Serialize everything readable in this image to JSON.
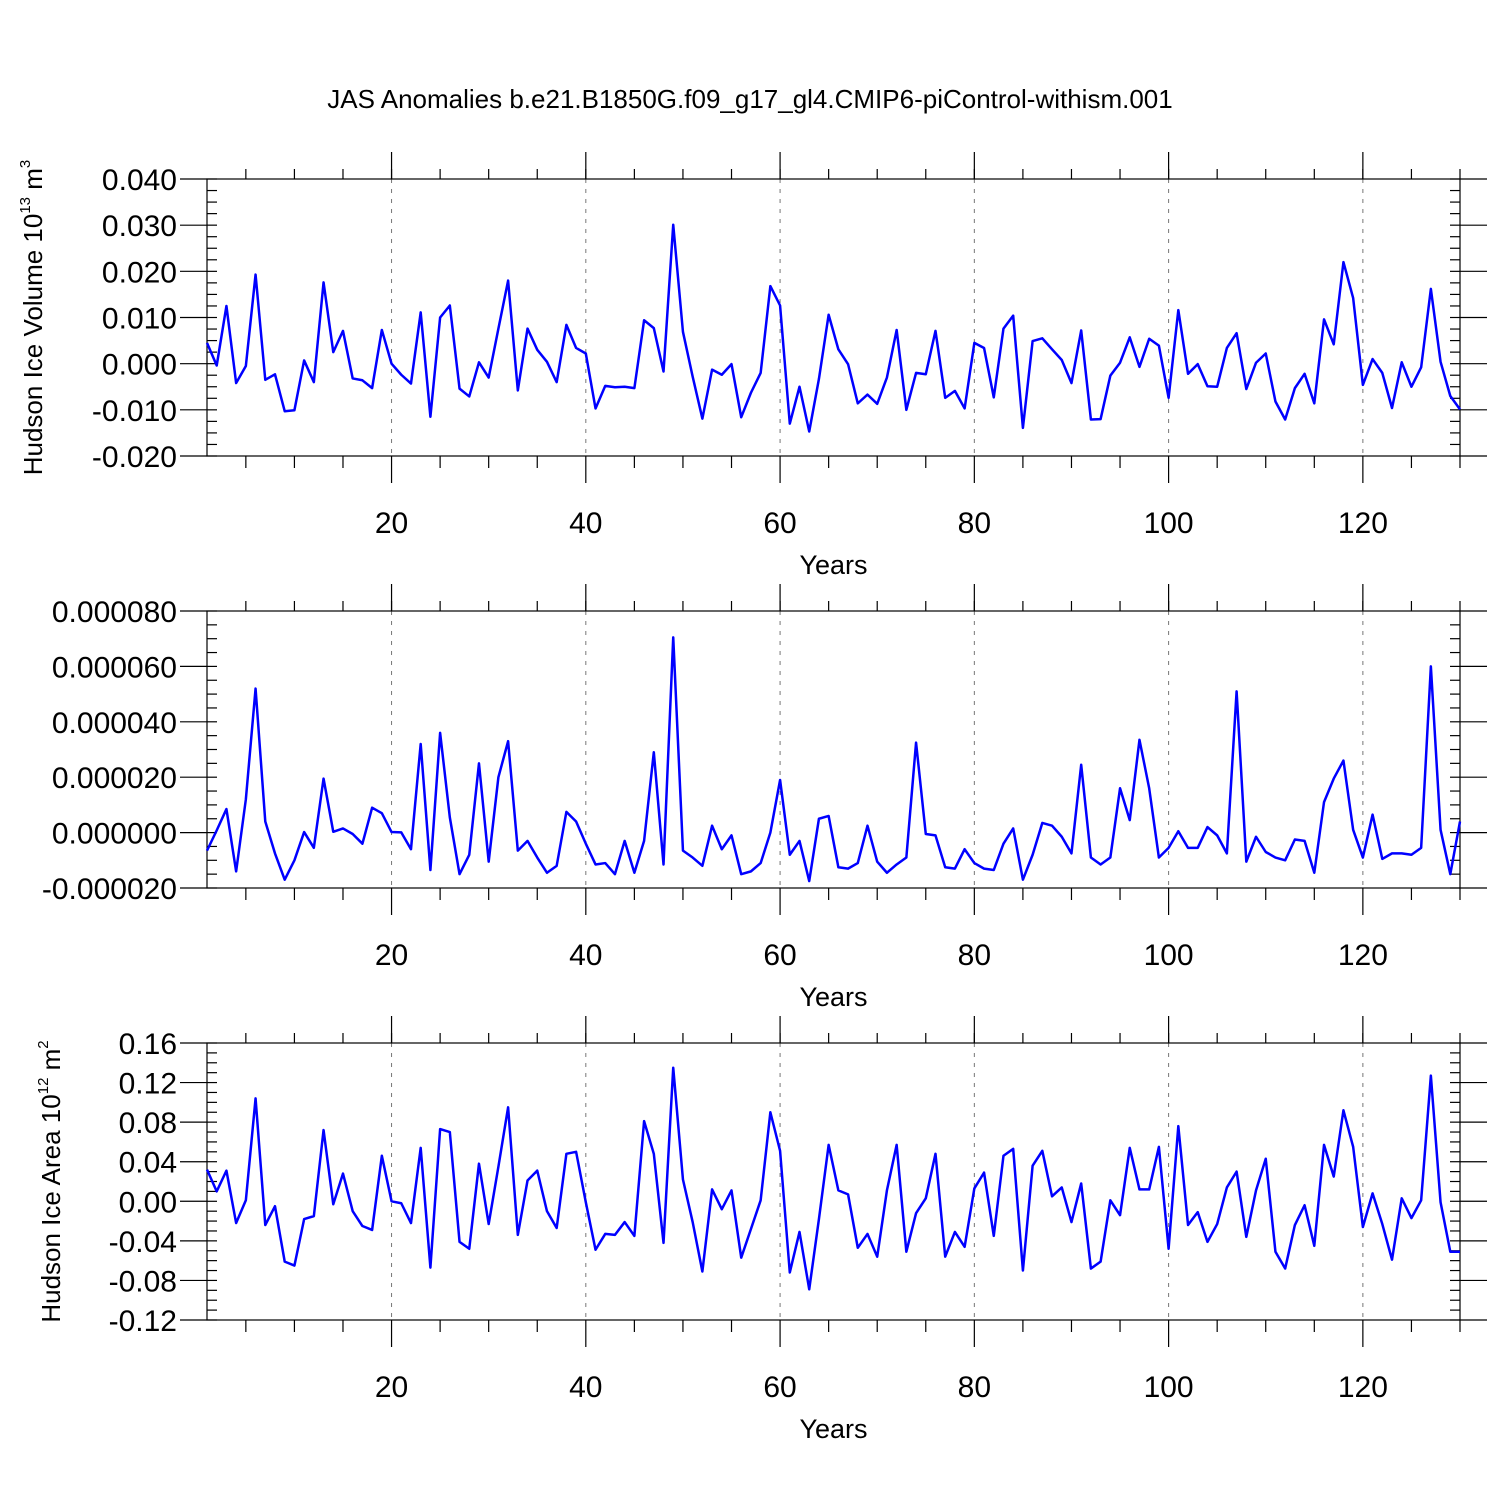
{
  "title": "JAS Anomalies b.e21.B1850G.f09_g17_gl4.CMIP6-piControl-withism.001",
  "chart_data": [
    {
      "type": "line",
      "ylabel": {
        "text": "Hudson Ice Volume 10",
        "exp": "13",
        "unit": " m",
        "unit_exp": "3"
      },
      "xlabel": "Years",
      "xlim": [
        1,
        130
      ],
      "ylim": [
        -0.02,
        0.04
      ],
      "xticks": [
        "20",
        "40",
        "60",
        "80",
        "100",
        "120"
      ],
      "yticks": [
        "0.040",
        "0.030",
        "0.020",
        "0.010",
        "0.000",
        "-0.010",
        "-0.020"
      ],
      "grid": "vertical dashed at x = 20, 40, 60, 80, 100, 120",
      "series": [
        {
          "color": "#0000ff",
          "values": [
            0.0045,
            -0.0004,
            0.0125,
            -0.0042,
            -0.0005,
            0.0193,
            -0.0035,
            -0.0023,
            -0.0103,
            -0.0101,
            0.0007,
            -0.004,
            0.0176,
            0.0025,
            0.0071,
            -0.0032,
            -0.0036,
            -0.0053,
            0.0073,
            0.0,
            -0.0024,
            -0.0043,
            0.0111,
            -0.0115,
            0.01,
            0.0126,
            -0.0054,
            -0.0071,
            0.0003,
            -0.003,
            0.0076,
            0.018,
            -0.0058,
            0.0076,
            0.003,
            0.0004,
            -0.004,
            0.0084,
            0.0034,
            0.0022,
            -0.0097,
            -0.0048,
            -0.0051,
            -0.005,
            -0.0053,
            0.0094,
            0.0077,
            -0.0017,
            0.0301,
            0.0069,
            -0.0028,
            -0.0119,
            -0.0013,
            -0.0024,
            -0.0001,
            -0.0116,
            -0.0063,
            -0.002,
            0.0168,
            0.0126,
            -0.013,
            -0.005,
            -0.0147,
            -0.0033,
            0.0106,
            0.0031,
            -0.0001,
            -0.0086,
            -0.0067,
            -0.0087,
            -0.003,
            0.0073,
            -0.01,
            -0.002,
            -0.0023,
            0.0071,
            -0.0074,
            -0.0059,
            -0.0097,
            0.0045,
            0.0034,
            -0.0073,
            0.0076,
            0.0104,
            -0.0139,
            0.0049,
            0.0055,
            0.0031,
            0.0008,
            -0.0042,
            0.0072,
            -0.0121,
            -0.012,
            -0.0026,
            0.0002,
            0.0057,
            -0.0007,
            0.0054,
            0.0039,
            -0.0074,
            0.0116,
            -0.0022,
            -0.0001,
            -0.0049,
            -0.005,
            0.0034,
            0.0066,
            -0.0055,
            0.0002,
            0.0022,
            -0.0082,
            -0.0121,
            -0.0053,
            -0.0022,
            -0.0086,
            0.0096,
            0.0042,
            0.022,
            0.0142,
            -0.0046,
            0.001,
            -0.002,
            -0.0096,
            0.0003,
            -0.005,
            -0.0008,
            0.0162,
            0.0004,
            -0.007,
            -0.0099
          ]
        }
      ]
    },
    {
      "type": "line",
      "ylabel": null,
      "xlabel": "Years",
      "xlim": [
        1,
        130
      ],
      "ylim": [
        -2e-05,
        8e-05
      ],
      "xticks": [
        "20",
        "40",
        "60",
        "80",
        "100",
        "120"
      ],
      "yticks": [
        "0.000080",
        "0.000060",
        "0.000040",
        "0.000020",
        "0.000000",
        "-0.000020"
      ],
      "grid": "vertical dashed at x = 20, 40, 60, 80, 100, 120",
      "series": [
        {
          "color": "#0000ff",
          "values": [
            -6.5e-06,
            8e-07,
            8.5e-06,
            -1.4e-05,
            1.2e-05,
            5.2e-05,
            4e-06,
            -7.5e-06,
            -1.7e-05,
            -1e-05,
            2e-07,
            -5.5e-06,
            1.95e-05,
            3e-07,
            1.5e-06,
            -5e-07,
            -4e-06,
            9e-06,
            7e-06,
            2e-07,
            1e-07,
            -6e-06,
            3.2e-05,
            -1.35e-05,
            3.6e-05,
            5.5e-06,
            -1.5e-05,
            -8e-06,
            2.5e-05,
            -1.05e-05,
            2e-05,
            3.3e-05,
            -6.5e-06,
            -3e-06,
            -9e-06,
            -1.45e-05,
            -1.2e-05,
            7.5e-06,
            4e-06,
            -4e-06,
            -1.15e-05,
            -1.1e-05,
            -1.5e-05,
            -3e-06,
            -1.45e-05,
            -3e-06,
            2.9e-05,
            -1.15e-05,
            7.05e-05,
            -6.5e-06,
            -9e-06,
            -1.2e-05,
            2.5e-06,
            -6e-06,
            -1e-06,
            -1.5e-05,
            -1.4e-05,
            -1.1e-05,
            0.0,
            1.9e-05,
            -8e-06,
            -3e-06,
            -1.75e-05,
            5e-06,
            6e-06,
            -1.25e-05,
            -1.3e-05,
            -1.1e-05,
            2.5e-06,
            -1.05e-05,
            -1.45e-05,
            -1.15e-05,
            -9e-06,
            3.25e-05,
            -5e-07,
            -1e-06,
            -1.25e-05,
            -1.3e-05,
            -6e-06,
            -1.1e-05,
            -1.3e-05,
            -1.35e-05,
            -4e-06,
            1.5e-06,
            -1.7e-05,
            -8e-06,
            3.5e-06,
            2.5e-06,
            -1.5e-06,
            -7.5e-06,
            2.45e-05,
            -9e-06,
            -1.15e-05,
            -9e-06,
            1.6e-05,
            4.5e-06,
            3.35e-05,
            1.6e-05,
            -9e-06,
            -5.5e-06,
            5e-07,
            -5.5e-06,
            -5.5e-06,
            2e-06,
            -1e-06,
            -7.5e-06,
            5.1e-05,
            -1.05e-05,
            -1.5e-06,
            -7e-06,
            -9e-06,
            -1e-05,
            -2.5e-06,
            -3e-06,
            -1.45e-05,
            1.1e-05,
            1.95e-05,
            2.6e-05,
            1e-06,
            -9e-06,
            6.5e-06,
            -9.5e-06,
            -7.5e-06,
            -7.5e-06,
            -8e-06,
            -5.5e-06,
            6e-05,
            1e-06,
            -1.5e-05,
            4e-06
          ]
        }
      ]
    },
    {
      "type": "line",
      "ylabel": {
        "text": "Hudson Ice Area 10",
        "exp": "12",
        "unit": " m",
        "unit_exp": "2"
      },
      "xlabel": "Years",
      "xlim": [
        1,
        130
      ],
      "ylim": [
        -0.12,
        0.16
      ],
      "xticks": [
        "20",
        "40",
        "60",
        "80",
        "100",
        "120"
      ],
      "yticks": [
        "0.16",
        "0.12",
        "0.08",
        "0.04",
        "0.00",
        "-0.04",
        "-0.08",
        "-0.12"
      ],
      "grid": "vertical dashed at x = 20, 40, 60, 80, 100, 120",
      "series": [
        {
          "color": "#0000ff",
          "values": [
            0.032,
            0.01,
            0.031,
            -0.022,
            0.001,
            0.104,
            -0.024,
            -0.005,
            -0.061,
            -0.065,
            -0.018,
            -0.015,
            0.072,
            -0.003,
            0.028,
            -0.01,
            -0.025,
            -0.029,
            0.046,
            0.0,
            -0.002,
            -0.022,
            0.054,
            -0.067,
            0.073,
            0.07,
            -0.041,
            -0.048,
            0.038,
            -0.023,
            0.035,
            0.095,
            -0.034,
            0.021,
            0.031,
            -0.01,
            -0.027,
            0.048,
            0.05,
            -0.001,
            -0.049,
            -0.033,
            -0.034,
            -0.021,
            -0.035,
            0.081,
            0.048,
            -0.042,
            0.135,
            0.022,
            -0.021,
            -0.071,
            0.012,
            -0.008,
            0.011,
            -0.057,
            -0.028,
            0.001,
            0.09,
            0.051,
            -0.072,
            -0.031,
            -0.089,
            -0.018,
            0.057,
            0.011,
            0.007,
            -0.047,
            -0.033,
            -0.056,
            0.011,
            0.057,
            -0.051,
            -0.012,
            0.003,
            0.048,
            -0.056,
            -0.031,
            -0.046,
            0.013,
            0.029,
            -0.035,
            0.046,
            0.053,
            -0.07,
            0.036,
            0.051,
            0.005,
            0.014,
            -0.021,
            0.018,
            -0.068,
            -0.061,
            0.001,
            -0.014,
            0.054,
            0.012,
            0.012,
            0.055,
            -0.048,
            0.076,
            -0.024,
            -0.011,
            -0.041,
            -0.023,
            0.014,
            0.03,
            -0.036,
            0.011,
            0.043,
            -0.051,
            -0.068,
            -0.024,
            -0.004,
            -0.045,
            0.057,
            0.025,
            0.092,
            0.055,
            -0.026,
            0.008,
            -0.023,
            -0.059,
            0.003,
            -0.017,
            0.001,
            0.127,
            -0.001,
            -0.051,
            -0.051
          ]
        }
      ]
    }
  ]
}
